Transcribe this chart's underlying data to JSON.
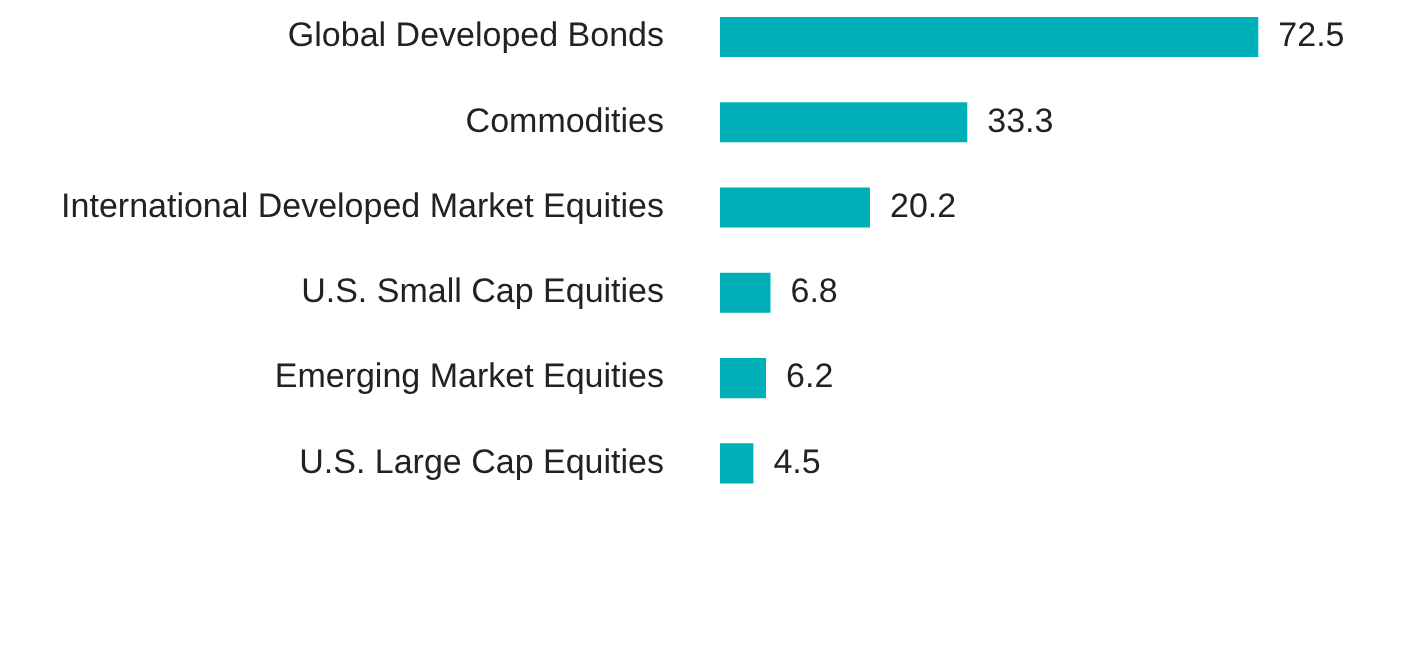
{
  "chart_data": {
    "type": "bar",
    "orientation": "horizontal",
    "categories": [
      "Global Developed Bonds",
      "Commodities",
      "International Developed Market Equities",
      "U.S. Small Cap Equities",
      "Emerging Market Equities",
      "U.S. Large Cap Equities"
    ],
    "values": [
      72.5,
      33.3,
      20.2,
      6.8,
      6.2,
      4.5
    ],
    "color": "#00b0b9",
    "data_labels": true
  }
}
